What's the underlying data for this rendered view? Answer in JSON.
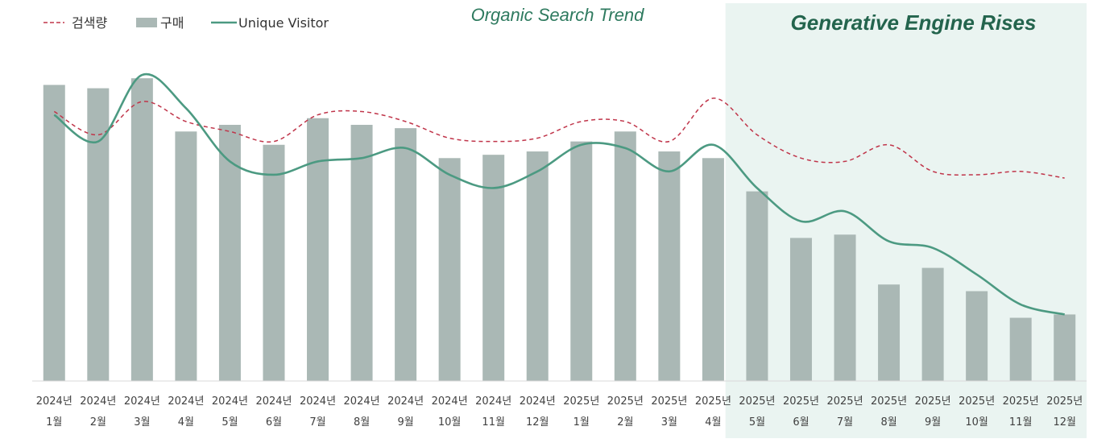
{
  "chart_data": {
    "type": "bar",
    "title": "Organic Search Trend",
    "annotation": "Generative Engine Rises",
    "highlight_range": [
      "2025년 5월",
      "2025년 12월"
    ],
    "categories": [
      [
        "2024년",
        "1월"
      ],
      [
        "2024년",
        "2월"
      ],
      [
        "2024년",
        "3월"
      ],
      [
        "2024년",
        "4월"
      ],
      [
        "2024년",
        "5월"
      ],
      [
        "2024년",
        "6월"
      ],
      [
        "2024년",
        "7월"
      ],
      [
        "2024년",
        "8월"
      ],
      [
        "2024년",
        "9월"
      ],
      [
        "2024년",
        "10월"
      ],
      [
        "2024년",
        "11월"
      ],
      [
        "2024년",
        "12월"
      ],
      [
        "2025년",
        "1월"
      ],
      [
        "2025년",
        "2월"
      ],
      [
        "2025년",
        "3월"
      ],
      [
        "2025년",
        "4월"
      ],
      [
        "2025년",
        "5월"
      ],
      [
        "2025년",
        "6월"
      ],
      [
        "2025년",
        "7월"
      ],
      [
        "2025년",
        "8월"
      ],
      [
        "2025년",
        "9월"
      ],
      [
        "2025년",
        "10월"
      ],
      [
        "2025년",
        "11월"
      ],
      [
        "2025년",
        "12월"
      ]
    ],
    "ylim": [
      0,
      100
    ],
    "grid": false,
    "legend_position": "top-left",
    "series": [
      {
        "name": "검색량",
        "type": "line",
        "style": "dashed",
        "smooth": true,
        "color": "#c0354a",
        "values": [
          81,
          74,
          84,
          78,
          75,
          72,
          80,
          81,
          78,
          73,
          72,
          73,
          78,
          78,
          72,
          85,
          74,
          67,
          66,
          71,
          63,
          62,
          63,
          61
        ]
      },
      {
        "name": "구매",
        "type": "bar",
        "color": "#aab8b5",
        "values": [
          89,
          88,
          91,
          75,
          77,
          71,
          79,
          77,
          76,
          67,
          68,
          69,
          72,
          75,
          69,
          67,
          57,
          43,
          44,
          29,
          34,
          27,
          19,
          20
        ]
      },
      {
        "name": "Unique Visitor",
        "type": "line",
        "style": "solid",
        "smooth": true,
        "color": "#4c9a82",
        "values": [
          80,
          72,
          92,
          82,
          66,
          62,
          66,
          67,
          70,
          62,
          58,
          63,
          71,
          70,
          63,
          71,
          58,
          48,
          51,
          42,
          40,
          32,
          23,
          20
        ]
      }
    ]
  }
}
